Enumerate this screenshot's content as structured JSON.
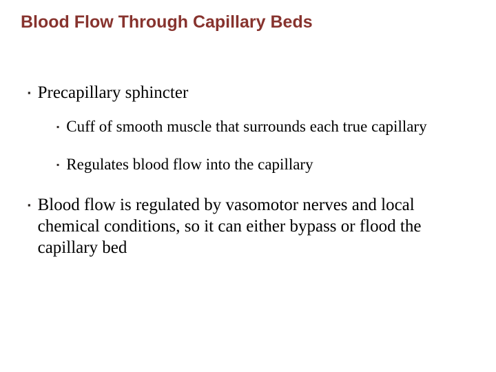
{
  "title": "Blood Flow Through Capillary Beds",
  "bullets": {
    "b1": "Precapillary sphincter",
    "b1_1": "Cuff of smooth muscle that surrounds each true capillary",
    "b1_2": "Regulates blood flow into the capillary",
    "b2": "Blood flow is regulated by vasomotor nerves and local chemical conditions, so it can either bypass or flood the capillary bed"
  },
  "style": {
    "title_color": "#87332e",
    "title_fontsize": 25,
    "title_font": "Arial",
    "body_font": "Times New Roman",
    "body_color": "#000000",
    "bullet_color": "#2d2724",
    "level1_fontsize": 25,
    "level2_fontsize": 23,
    "background_color": "#ffffff",
    "bullet_glyph": "▪"
  }
}
